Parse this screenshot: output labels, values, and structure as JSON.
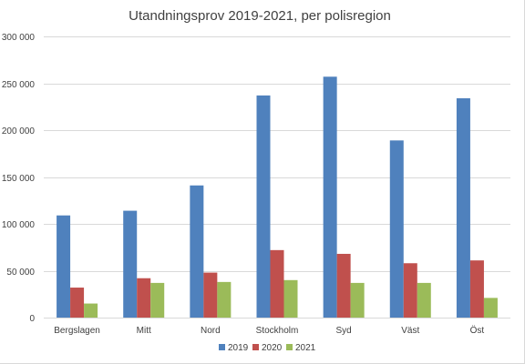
{
  "chart_data": {
    "type": "bar",
    "title": "Utandningsprov 2019-2021, per polisregion",
    "xlabel": "",
    "ylabel": "",
    "categories": [
      "Bergslagen",
      "Mitt",
      "Nord",
      "Stockholm",
      "Syd",
      "Väst",
      "Öst"
    ],
    "series": [
      {
        "name": "2019",
        "color": "#4f81bd",
        "values": [
          109000,
          114000,
          141000,
          237000,
          257000,
          189000,
          234000
        ]
      },
      {
        "name": "2020",
        "color": "#c0504d",
        "values": [
          32000,
          42000,
          48000,
          72000,
          68000,
          58000,
          61000
        ]
      },
      {
        "name": "2021",
        "color": "#9bbb59",
        "values": [
          15000,
          37000,
          38000,
          40000,
          37000,
          37000,
          21000
        ]
      }
    ],
    "ylim": [
      0,
      300000
    ],
    "yticks": [
      0,
      50000,
      100000,
      150000,
      200000,
      250000,
      300000
    ],
    "ytick_labels": [
      "0",
      "50 000",
      "100 000",
      "150 000",
      "200 000",
      "250 000",
      "300 000"
    ],
    "grid": true,
    "legend": "bottom"
  }
}
